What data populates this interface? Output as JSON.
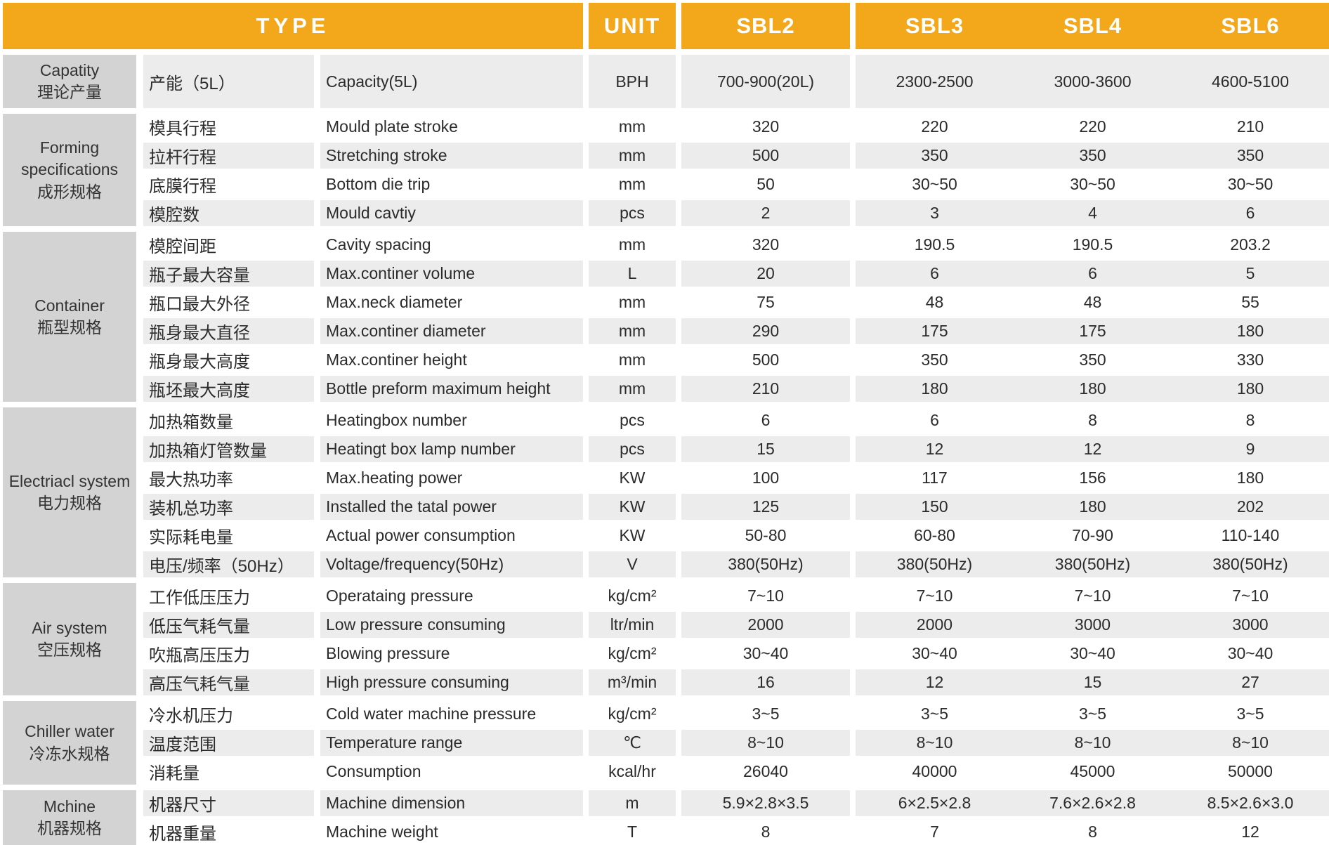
{
  "colors": {
    "header_bg": "#F3A71B",
    "header_text": "#FFFFFF",
    "category_bg": "#D3D3D3",
    "row_alt_bg": "#ECECEC",
    "row_bg": "#FFFFFF",
    "body_text": "#2B2B2B"
  },
  "header": {
    "type_label": "TYPE",
    "unit_label": "UNIT",
    "models": [
      "SBL2",
      "SBL3",
      "SBL4",
      "SBL6"
    ]
  },
  "groups": [
    {
      "name_en": "Capatity",
      "name_cn": "理论产量",
      "rows": [
        {
          "cn": "产能（5L）",
          "en": "Capacity(5L)",
          "unit": "BPH",
          "values": [
            "700-900(20L)",
            "2300-2500",
            "3000-3600",
            "4600-5100"
          ]
        }
      ]
    },
    {
      "name_en": "Forming specifications",
      "name_cn": "成形规格",
      "rows": [
        {
          "cn": "模具行程",
          "en": "Mould plate stroke",
          "unit": "mm",
          "values": [
            "320",
            "220",
            "220",
            "210"
          ]
        },
        {
          "cn": "拉杆行程",
          "en": "Stretching stroke",
          "unit": "mm",
          "values": [
            "500",
            "350",
            "350",
            "350"
          ]
        },
        {
          "cn": "底膜行程",
          "en": "Bottom die trip",
          "unit": "mm",
          "values": [
            "50",
            "30~50",
            "30~50",
            "30~50"
          ]
        },
        {
          "cn": "模腔数",
          "en": "Mould cavtiy",
          "unit": "pcs",
          "values": [
            "2",
            "3",
            "4",
            "6"
          ]
        }
      ]
    },
    {
      "name_en": "Container",
      "name_cn": "瓶型规格",
      "rows": [
        {
          "cn": "模腔间距",
          "en": "Cavity spacing",
          "unit": "mm",
          "values": [
            "320",
            "190.5",
            "190.5",
            "203.2"
          ]
        },
        {
          "cn": "瓶子最大容量",
          "en": "Max.continer volume",
          "unit": "L",
          "values": [
            "20",
            "6",
            "6",
            "5"
          ]
        },
        {
          "cn": "瓶口最大外径",
          "en": "Max.neck diameter",
          "unit": "mm",
          "values": [
            "75",
            "48",
            "48",
            "55"
          ]
        },
        {
          "cn": "瓶身最大直径",
          "en": "Max.continer diameter",
          "unit": "mm",
          "values": [
            "290",
            "175",
            "175",
            "180"
          ]
        },
        {
          "cn": "瓶身最大高度",
          "en": "Max.continer height",
          "unit": "mm",
          "values": [
            "500",
            "350",
            "350",
            "330"
          ]
        },
        {
          "cn": "瓶坯最大高度",
          "en": "Bottle preform maximum height",
          "unit": "mm",
          "values": [
            "210",
            "180",
            "180",
            "180"
          ]
        }
      ]
    },
    {
      "name_en": "Electriacl system",
      "name_cn": "电力规格",
      "rows": [
        {
          "cn": "加热箱数量",
          "en": "Heatingbox number",
          "unit": "pcs",
          "values": [
            "6",
            "6",
            "8",
            "8"
          ]
        },
        {
          "cn": "加热箱灯管数量",
          "en": "Heatingt box lamp number",
          "unit": "pcs",
          "values": [
            "15",
            "12",
            "12",
            "9"
          ]
        },
        {
          "cn": "最大热功率",
          "en": "Max.heating power",
          "unit": "KW",
          "values": [
            "100",
            "117",
            "156",
            "180"
          ]
        },
        {
          "cn": "装机总功率",
          "en": "Installed the tatal power",
          "unit": "KW",
          "values": [
            "125",
            "150",
            "180",
            "202"
          ]
        },
        {
          "cn": "实际耗电量",
          "en": "Actual power consumption",
          "unit": "KW",
          "values": [
            "50-80",
            "60-80",
            "70-90",
            "110-140"
          ]
        },
        {
          "cn": "电压/频率（50Hz）",
          "en": "Voltage/frequency(50Hz)",
          "unit": "V",
          "values": [
            "380(50Hz)",
            "380(50Hz)",
            "380(50Hz)",
            "380(50Hz)"
          ]
        }
      ]
    },
    {
      "name_en": "Air system",
      "name_cn": "空压规格",
      "rows": [
        {
          "cn": "工作低压压力",
          "en": "Operataing pressure",
          "unit": "kg/cm²",
          "values": [
            "7~10",
            "7~10",
            "7~10",
            "7~10"
          ]
        },
        {
          "cn": "低压气耗气量",
          "en": "Low pressure consuming",
          "unit": "ltr/min",
          "values": [
            "2000",
            "2000",
            "3000",
            "3000"
          ]
        },
        {
          "cn": "吹瓶高压压力",
          "en": "Blowing pressure",
          "unit": "kg/cm²",
          "values": [
            "30~40",
            "30~40",
            "30~40",
            "30~40"
          ]
        },
        {
          "cn": "高压气耗气量",
          "en": "High pressure consuming",
          "unit": "m³/min",
          "values": [
            "16",
            "12",
            "15",
            "27"
          ]
        }
      ]
    },
    {
      "name_en": "Chiller water",
      "name_cn": "冷冻水规格",
      "rows": [
        {
          "cn": "冷水机压力",
          "en": "Cold water machine pressure",
          "unit": "kg/cm²",
          "values": [
            "3~5",
            "3~5",
            "3~5",
            "3~5"
          ]
        },
        {
          "cn": "温度范围",
          "en": "Temperature range",
          "unit": "℃",
          "values": [
            "8~10",
            "8~10",
            "8~10",
            "8~10"
          ]
        },
        {
          "cn": "消耗量",
          "en": "Consumption",
          "unit": "kcal/hr",
          "values": [
            "26040",
            "40000",
            "45000",
            "50000"
          ]
        }
      ]
    },
    {
      "name_en": "Mchine",
      "name_cn": "机器规格",
      "rows": [
        {
          "cn": "机器尺寸",
          "en": "Machine dimension",
          "unit": "m",
          "values": [
            "5.9×2.8×3.5",
            "6×2.5×2.8",
            "7.6×2.6×2.8",
            "8.5×2.6×3.0"
          ]
        },
        {
          "cn": "机器重量",
          "en": "Machine weight",
          "unit": "T",
          "values": [
            "8",
            "7",
            "8",
            "12"
          ]
        }
      ]
    }
  ]
}
